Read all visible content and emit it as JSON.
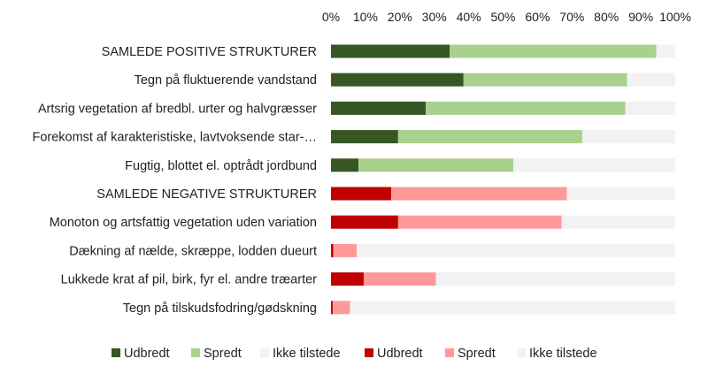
{
  "chart_data": {
    "type": "bar",
    "orientation": "horizontal",
    "stacked": "percent",
    "title": "",
    "xlabel": "",
    "ylabel": "",
    "xlim": [
      0,
      100
    ],
    "x_ticks": [
      "0%",
      "10%",
      "20%",
      "30%",
      "40%",
      "50%",
      "60%",
      "70%",
      "80%",
      "90%",
      "100%"
    ],
    "x_axis_position": "top",
    "grid": false,
    "legend_position": "bottom",
    "categories": [
      "SAMLEDE POSITIVE STRUKTURER",
      "Tegn på fluktuerende vandstand",
      "Artsrig vegetation af bredbl. urter og halvgræsser",
      "Forekomst af karakteristiske, lavtvoksende star-…",
      "Fugtig, blottet el. optrådt jordbund",
      "SAMLEDE NEGATIVE STRUKTURER",
      "Monoton og artsfattig vegetation uden variation",
      "Dækning af nælde, skræppe, lodden dueurt",
      "Lukkede krat af pil, birk, fyr el. andre træarter",
      "Tegn på tilskudsfodring/gødskning"
    ],
    "series": [
      {
        "name": "Udbredt",
        "color": "#375623",
        "values": [
          34.5,
          38.5,
          27.5,
          19.5,
          8,
          0,
          0,
          0,
          0,
          0
        ]
      },
      {
        "name": "Spredt",
        "color": "#a9d18e",
        "values": [
          60,
          47.5,
          58,
          53.5,
          45,
          0,
          0,
          0,
          0,
          0
        ]
      },
      {
        "name": "Ikke tilstede",
        "color": "#f2f2f2",
        "values": [
          5.5,
          14,
          14.5,
          27,
          47,
          0,
          0,
          0,
          0,
          0
        ]
      },
      {
        "name": "Udbredt",
        "color": "#c00000",
        "values": [
          0,
          0,
          0,
          0,
          0,
          17.5,
          19.5,
          0.7,
          9.5,
          0.5
        ]
      },
      {
        "name": "Spredt",
        "color": "#ff9999",
        "values": [
          0,
          0,
          0,
          0,
          0,
          51,
          47.5,
          6.8,
          21,
          5
        ]
      },
      {
        "name": "Ikke tilstede",
        "color": "#f2f2f2",
        "values": [
          0,
          0,
          0,
          0,
          0,
          31.5,
          33,
          92.5,
          69.5,
          94.5
        ]
      }
    ]
  }
}
